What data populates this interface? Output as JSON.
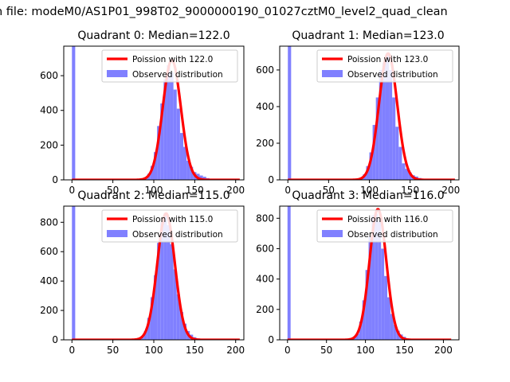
{
  "figure_title": "n file: modeM0/AS1P01_998T02_9000000190_01027cztM0_level2_quad_clean",
  "colors": {
    "observed": "#8080ff",
    "poisson": "#ff0000",
    "axis": "#000000",
    "legend_border": "#cccccc"
  },
  "chart_data": [
    {
      "type": "bar",
      "title": "Quadrant 0: Median=122.0",
      "median": 122.0,
      "xlim": [
        -10,
        210
      ],
      "ylim": [
        0,
        770
      ],
      "xticks": [
        0,
        50,
        100,
        150,
        200
      ],
      "yticks": [
        0,
        200,
        400,
        600
      ],
      "legend": {
        "placement": "top-right",
        "entries": [
          "Poission with 122.0",
          "Observed distribution"
        ]
      },
      "observed_distribution": {
        "bin_width": 4,
        "bins": [
          0,
          4,
          8,
          12,
          16,
          20,
          24,
          28,
          32,
          36,
          40,
          44,
          48,
          52,
          56,
          60,
          64,
          68,
          72,
          76,
          80,
          84,
          88,
          92,
          96,
          100,
          104,
          108,
          112,
          116,
          120,
          124,
          128,
          132,
          136,
          140,
          144,
          148,
          152,
          156,
          160,
          164,
          168,
          172,
          176,
          180,
          184,
          188,
          192,
          196,
          200
        ],
        "counts": [
          770,
          0,
          0,
          0,
          0,
          0,
          0,
          0,
          0,
          0,
          0,
          0,
          0,
          0,
          0,
          0,
          0,
          0,
          0,
          0,
          2,
          5,
          15,
          35,
          80,
          160,
          310,
          440,
          580,
          660,
          620,
          520,
          410,
          270,
          190,
          110,
          75,
          45,
          35,
          25,
          18,
          10,
          6,
          4,
          2,
          1,
          1,
          0,
          0,
          0,
          0
        ]
      },
      "poisson_fit": {
        "lambda": 122.0,
        "peak": 690,
        "x_range": [
          0,
          205
        ]
      }
    },
    {
      "type": "bar",
      "title": "Quadrant 1: Median=123.0",
      "median": 123.0,
      "xlim": [
        -10,
        210
      ],
      "ylim": [
        0,
        730
      ],
      "xticks": [
        0,
        50,
        100,
        150,
        200
      ],
      "yticks": [
        0,
        200,
        400,
        600
      ],
      "legend": {
        "placement": "top-right",
        "entries": [
          "Poission with 123.0",
          "Observed distribution"
        ]
      },
      "observed_distribution": {
        "bin_width": 4,
        "bins": [
          0,
          4,
          8,
          12,
          16,
          20,
          24,
          28,
          32,
          36,
          40,
          44,
          48,
          52,
          56,
          60,
          64,
          68,
          72,
          76,
          80,
          84,
          88,
          92,
          96,
          100,
          104,
          108,
          112,
          116,
          120,
          124,
          128,
          132,
          136,
          140,
          144,
          148,
          152,
          156,
          160,
          164,
          168,
          172,
          176,
          180,
          184,
          188,
          192,
          196,
          200
        ],
        "counts": [
          730,
          0,
          0,
          0,
          0,
          0,
          0,
          0,
          0,
          0,
          0,
          0,
          0,
          0,
          0,
          0,
          0,
          0,
          0,
          0,
          2,
          5,
          12,
          30,
          75,
          150,
          300,
          450,
          600,
          640,
          680,
          600,
          450,
          290,
          180,
          90,
          60,
          40,
          25,
          18,
          10,
          6,
          4,
          2,
          1,
          0,
          0,
          0,
          0,
          0,
          0
        ]
      },
      "poisson_fit": {
        "lambda": 123.0,
        "peak": 690,
        "x_range": [
          0,
          205
        ]
      }
    },
    {
      "type": "bar",
      "title": "Quadrant 2: Median=115.0",
      "median": 115.0,
      "xlim": [
        -10,
        210
      ],
      "ylim": [
        0,
        910
      ],
      "xticks": [
        0,
        50,
        100,
        150,
        200
      ],
      "yticks": [
        0,
        200,
        400,
        600,
        800
      ],
      "legend": {
        "placement": "top-right",
        "entries": [
          "Poission with 115.0",
          "Observed distribution"
        ]
      },
      "observed_distribution": {
        "bin_width": 4,
        "bins": [
          0,
          4,
          8,
          12,
          16,
          20,
          24,
          28,
          32,
          36,
          40,
          44,
          48,
          52,
          56,
          60,
          64,
          68,
          72,
          76,
          80,
          84,
          88,
          92,
          96,
          100,
          104,
          108,
          112,
          116,
          120,
          124,
          128,
          132,
          136,
          140,
          144,
          148,
          152,
          156,
          160,
          164,
          168,
          172,
          176,
          180,
          184,
          188,
          192,
          196,
          200
        ],
        "counts": [
          910,
          0,
          0,
          0,
          0,
          0,
          0,
          0,
          0,
          0,
          0,
          0,
          0,
          0,
          0,
          0,
          0,
          0,
          0,
          3,
          8,
          20,
          60,
          150,
          290,
          440,
          660,
          800,
          860,
          780,
          650,
          480,
          310,
          190,
          110,
          60,
          35,
          18,
          10,
          5,
          3,
          2,
          1,
          0,
          0,
          0,
          0,
          0,
          0,
          0,
          0
        ]
      },
      "poisson_fit": {
        "lambda": 115.0,
        "peak": 860,
        "x_range": [
          0,
          205
        ]
      }
    },
    {
      "type": "bar",
      "title": "Quadrant 3: Median=116.0",
      "median": 116.0,
      "xlim": [
        -10,
        220
      ],
      "ylim": [
        0,
        880
      ],
      "xticks": [
        0,
        50,
        100,
        150,
        200
      ],
      "yticks": [
        0,
        200,
        400,
        600,
        800
      ],
      "legend": {
        "placement": "top-right",
        "entries": [
          "Poission with 116.0",
          "Observed distribution"
        ]
      },
      "observed_distribution": {
        "bin_width": 4,
        "bins": [
          0,
          4,
          8,
          12,
          16,
          20,
          24,
          28,
          32,
          36,
          40,
          44,
          48,
          52,
          56,
          60,
          64,
          68,
          72,
          76,
          80,
          84,
          88,
          92,
          96,
          100,
          104,
          108,
          112,
          116,
          120,
          124,
          128,
          132,
          136,
          140,
          144,
          148,
          152,
          156,
          160,
          164,
          168,
          172,
          176,
          180,
          184,
          188,
          192,
          196,
          200,
          204,
          208
        ],
        "counts": [
          880,
          0,
          0,
          0,
          0,
          0,
          0,
          0,
          0,
          0,
          0,
          0,
          0,
          0,
          0,
          0,
          0,
          0,
          0,
          0,
          5,
          15,
          40,
          120,
          260,
          460,
          680,
          820,
          830,
          780,
          600,
          420,
          280,
          170,
          100,
          60,
          35,
          20,
          10,
          5,
          3,
          2,
          1,
          0,
          0,
          0,
          0,
          0,
          0,
          0,
          0,
          0,
          0
        ]
      },
      "poisson_fit": {
        "lambda": 116.0,
        "peak": 860,
        "x_range": [
          0,
          210
        ]
      }
    }
  ]
}
